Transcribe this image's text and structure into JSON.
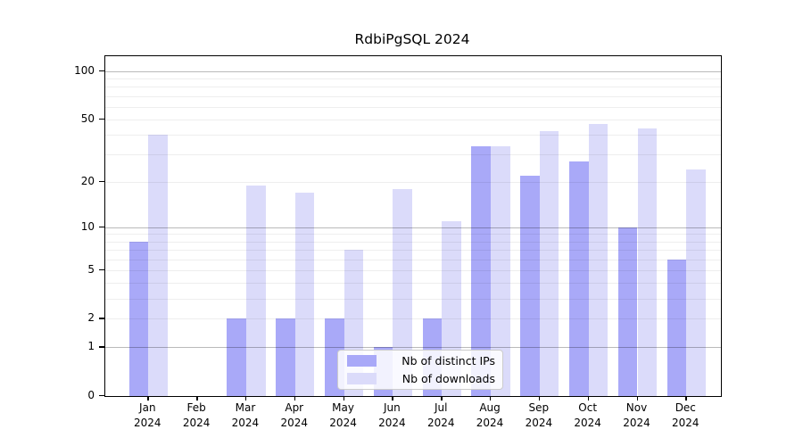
{
  "title": "RdbiPgSQL 2024",
  "chart_data": {
    "type": "bar",
    "title": "RdbiPgSQL 2024",
    "categories": [
      "Jan 2024",
      "Feb 2024",
      "Mar 2024",
      "Apr 2024",
      "May 2024",
      "Jun 2024",
      "Jul 2024",
      "Aug 2024",
      "Sep 2024",
      "Oct 2024",
      "Nov 2024",
      "Dec 2024"
    ],
    "series": [
      {
        "name": "Nb of distinct IPs",
        "color": "#a9a9f8",
        "values": [
          8,
          0,
          2,
          2,
          2,
          1,
          2,
          34,
          22,
          27,
          10,
          6
        ]
      },
      {
        "name": "Nb of downloads",
        "color": "#dbdbfa",
        "values": [
          40,
          0,
          19,
          17,
          7,
          18,
          11,
          34,
          42,
          47,
          44,
          24
        ]
      }
    ],
    "xlabel": "",
    "ylabel": "",
    "yscale": "log1p",
    "ytick_values": [
      0,
      1,
      2,
      5,
      10,
      20,
      50,
      100
    ],
    "ytick_labels": [
      "0",
      "1",
      "2",
      "5",
      "10",
      "20",
      "50",
      "100"
    ],
    "decade_gridlines": [
      1,
      10,
      100
    ],
    "minor_gridlines": [
      2,
      3,
      4,
      5,
      6,
      7,
      8,
      9,
      20,
      30,
      40,
      50,
      60,
      70,
      80,
      90
    ],
    "ylim": [
      0,
      125
    ],
    "grid": true,
    "legend_position": "bottom-center",
    "colors": {
      "ips_bar": "#a9a9f8",
      "downloads_bar": "#dbdbfa",
      "axis": "#000000",
      "decade_grid": "#bababa",
      "minor_grid": "#efefef",
      "legend_border": "#cccccc"
    }
  }
}
